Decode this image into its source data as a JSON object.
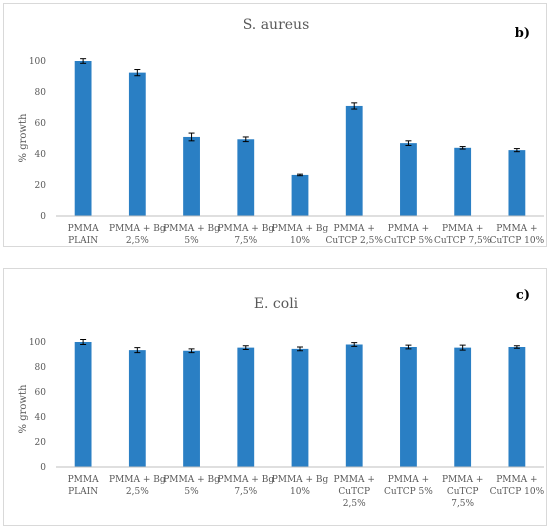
{
  "accent_color": "#2a7fc4",
  "chart_data": [
    {
      "type": "bar",
      "panel_label": "b)",
      "title": "S. aureus",
      "xlabel": "",
      "ylabel": "% growth",
      "ylim": [
        0,
        100
      ],
      "yticks": [
        0,
        20,
        40,
        60,
        80,
        100
      ],
      "grid": false,
      "categories": [
        [
          "PMMA",
          "PLAIN"
        ],
        [
          "PMMA + Bg",
          "2,5%"
        ],
        [
          "PMMA + Bg",
          "5%"
        ],
        [
          "PMMA + Bg",
          "7,5%"
        ],
        [
          "PMMA + Bg",
          "10%"
        ],
        [
          "PMMA +",
          "CuTCP 2,5%"
        ],
        [
          "PMMA +",
          "CuTCP 5%"
        ],
        [
          "PMMA +",
          "CuTCP 7,5%"
        ],
        [
          "PMMA +",
          "CuTCP 10%"
        ]
      ],
      "values": [
        100,
        92.5,
        51,
        49.5,
        26.5,
        71,
        47,
        44,
        42.5
      ],
      "errors": [
        1.5,
        2,
        2.5,
        1.5,
        0.5,
        2,
        1.5,
        0.8,
        1
      ]
    },
    {
      "type": "bar",
      "panel_label": "c)",
      "title": "E. coli",
      "xlabel": "",
      "ylabel": "% growth",
      "ylim": [
        0,
        100
      ],
      "yticks": [
        0,
        20,
        40,
        60,
        80,
        100
      ],
      "grid": false,
      "categories": [
        [
          "PMMA",
          "PLAIN"
        ],
        [
          "PMMA + Bg",
          "2,5%"
        ],
        [
          "PMMA + Bg",
          "5%"
        ],
        [
          "PMMA + Bg",
          "7,5%"
        ],
        [
          "PMMA + Bg",
          "10%"
        ],
        [
          "PMMA +",
          "CuTCP",
          "2,5%"
        ],
        [
          "PMMA +",
          "CuTCP 5%"
        ],
        [
          "PMMA +",
          "CuTCP",
          "7,5%"
        ],
        [
          "PMMA +",
          "CuTCP 10%"
        ]
      ],
      "values": [
        100,
        93.5,
        93,
        95.5,
        94.5,
        98,
        96,
        95.5,
        96
      ],
      "errors": [
        2,
        2,
        1.5,
        1.5,
        1.5,
        1.5,
        1.5,
        2,
        1
      ]
    }
  ]
}
